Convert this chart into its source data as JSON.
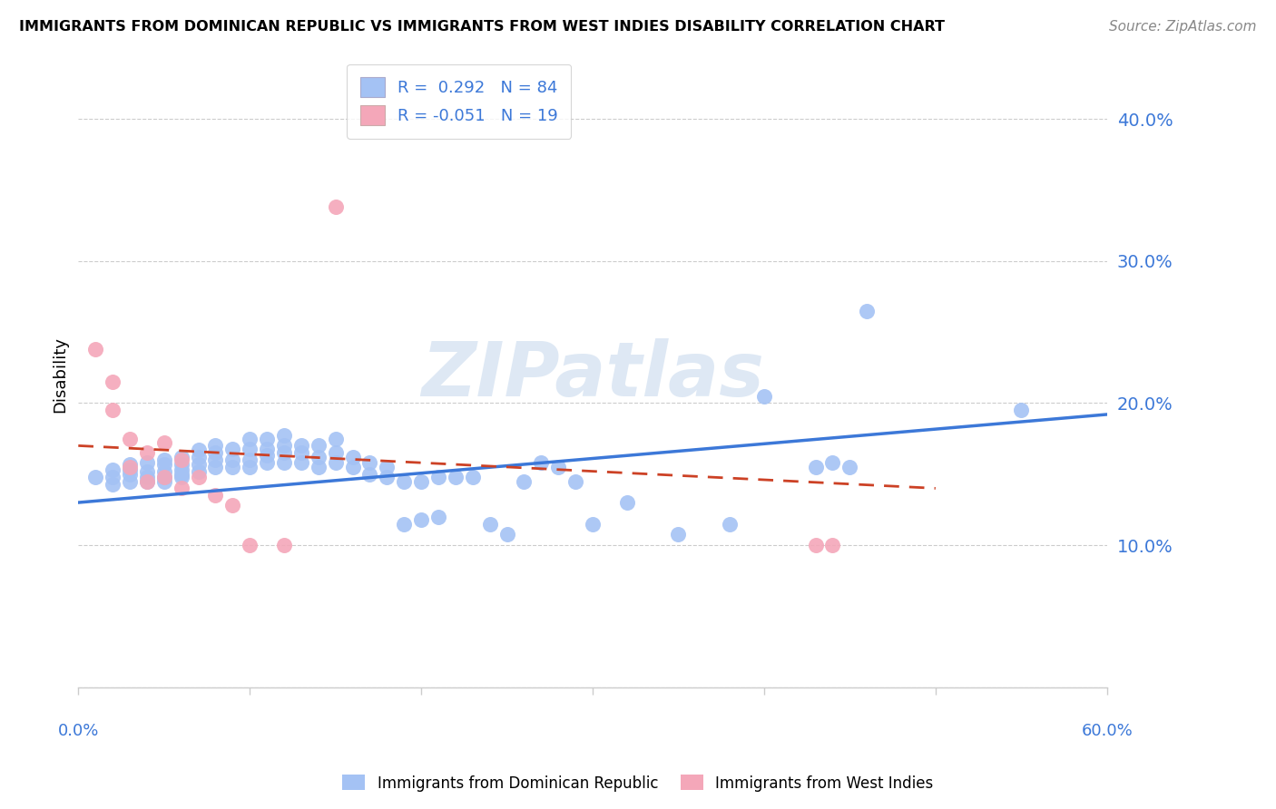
{
  "title": "IMMIGRANTS FROM DOMINICAN REPUBLIC VS IMMIGRANTS FROM WEST INDIES DISABILITY CORRELATION CHART",
  "source": "Source: ZipAtlas.com",
  "ylabel": "Disability",
  "yticks": [
    0.0,
    0.1,
    0.2,
    0.3,
    0.4
  ],
  "ytick_labels": [
    "",
    "10.0%",
    "20.0%",
    "30.0%",
    "40.0%"
  ],
  "xlim": [
    0.0,
    0.6
  ],
  "ylim": [
    -0.02,
    0.44
  ],
  "plot_ylim": [
    0.0,
    0.44
  ],
  "watermark": "ZIPatlas",
  "legend_r1": "R =  0.292   N = 84",
  "legend_r2": "R = -0.051   N = 19",
  "color_blue": "#a4c2f4",
  "color_pink": "#f4a7b9",
  "color_blue_line": "#3c78d8",
  "color_pink_line": "#cc4125",
  "color_axis_labels": "#3c78d8",
  "blue_x": [
    0.01,
    0.02,
    0.02,
    0.02,
    0.03,
    0.03,
    0.03,
    0.03,
    0.04,
    0.04,
    0.04,
    0.04,
    0.05,
    0.05,
    0.05,
    0.05,
    0.05,
    0.06,
    0.06,
    0.06,
    0.06,
    0.06,
    0.07,
    0.07,
    0.07,
    0.07,
    0.08,
    0.08,
    0.08,
    0.08,
    0.09,
    0.09,
    0.09,
    0.1,
    0.1,
    0.1,
    0.1,
    0.11,
    0.11,
    0.11,
    0.11,
    0.12,
    0.12,
    0.12,
    0.12,
    0.13,
    0.13,
    0.13,
    0.14,
    0.14,
    0.14,
    0.15,
    0.15,
    0.15,
    0.16,
    0.16,
    0.17,
    0.17,
    0.18,
    0.18,
    0.19,
    0.19,
    0.2,
    0.2,
    0.21,
    0.21,
    0.22,
    0.23,
    0.24,
    0.25,
    0.26,
    0.27,
    0.28,
    0.29,
    0.3,
    0.32,
    0.35,
    0.38,
    0.4,
    0.43,
    0.44,
    0.45,
    0.46,
    0.55
  ],
  "blue_y": [
    0.148,
    0.143,
    0.148,
    0.153,
    0.145,
    0.15,
    0.153,
    0.157,
    0.145,
    0.148,
    0.152,
    0.158,
    0.145,
    0.148,
    0.152,
    0.157,
    0.16,
    0.148,
    0.15,
    0.153,
    0.157,
    0.162,
    0.152,
    0.157,
    0.162,
    0.167,
    0.155,
    0.16,
    0.165,
    0.17,
    0.155,
    0.16,
    0.168,
    0.155,
    0.16,
    0.168,
    0.175,
    0.158,
    0.163,
    0.168,
    0.175,
    0.158,
    0.165,
    0.17,
    0.177,
    0.158,
    0.165,
    0.17,
    0.155,
    0.162,
    0.17,
    0.158,
    0.165,
    0.175,
    0.155,
    0.162,
    0.15,
    0.158,
    0.148,
    0.155,
    0.145,
    0.115,
    0.145,
    0.118,
    0.148,
    0.12,
    0.148,
    0.148,
    0.115,
    0.108,
    0.145,
    0.158,
    0.155,
    0.145,
    0.115,
    0.13,
    0.108,
    0.115,
    0.205,
    0.155,
    0.158,
    0.155,
    0.265,
    0.195
  ],
  "pink_x": [
    0.01,
    0.02,
    0.02,
    0.03,
    0.03,
    0.04,
    0.04,
    0.05,
    0.05,
    0.06,
    0.06,
    0.07,
    0.08,
    0.09,
    0.1,
    0.12,
    0.15,
    0.43,
    0.44
  ],
  "pink_y": [
    0.238,
    0.215,
    0.195,
    0.175,
    0.155,
    0.165,
    0.145,
    0.172,
    0.148,
    0.16,
    0.14,
    0.148,
    0.135,
    0.128,
    0.1,
    0.1,
    0.338,
    0.1,
    0.1
  ],
  "blue_trendline_x": [
    0.0,
    0.6
  ],
  "blue_trendline_y": [
    0.13,
    0.192
  ],
  "pink_trendline_x": [
    0.0,
    0.5
  ],
  "pink_trendline_y": [
    0.17,
    0.14
  ]
}
